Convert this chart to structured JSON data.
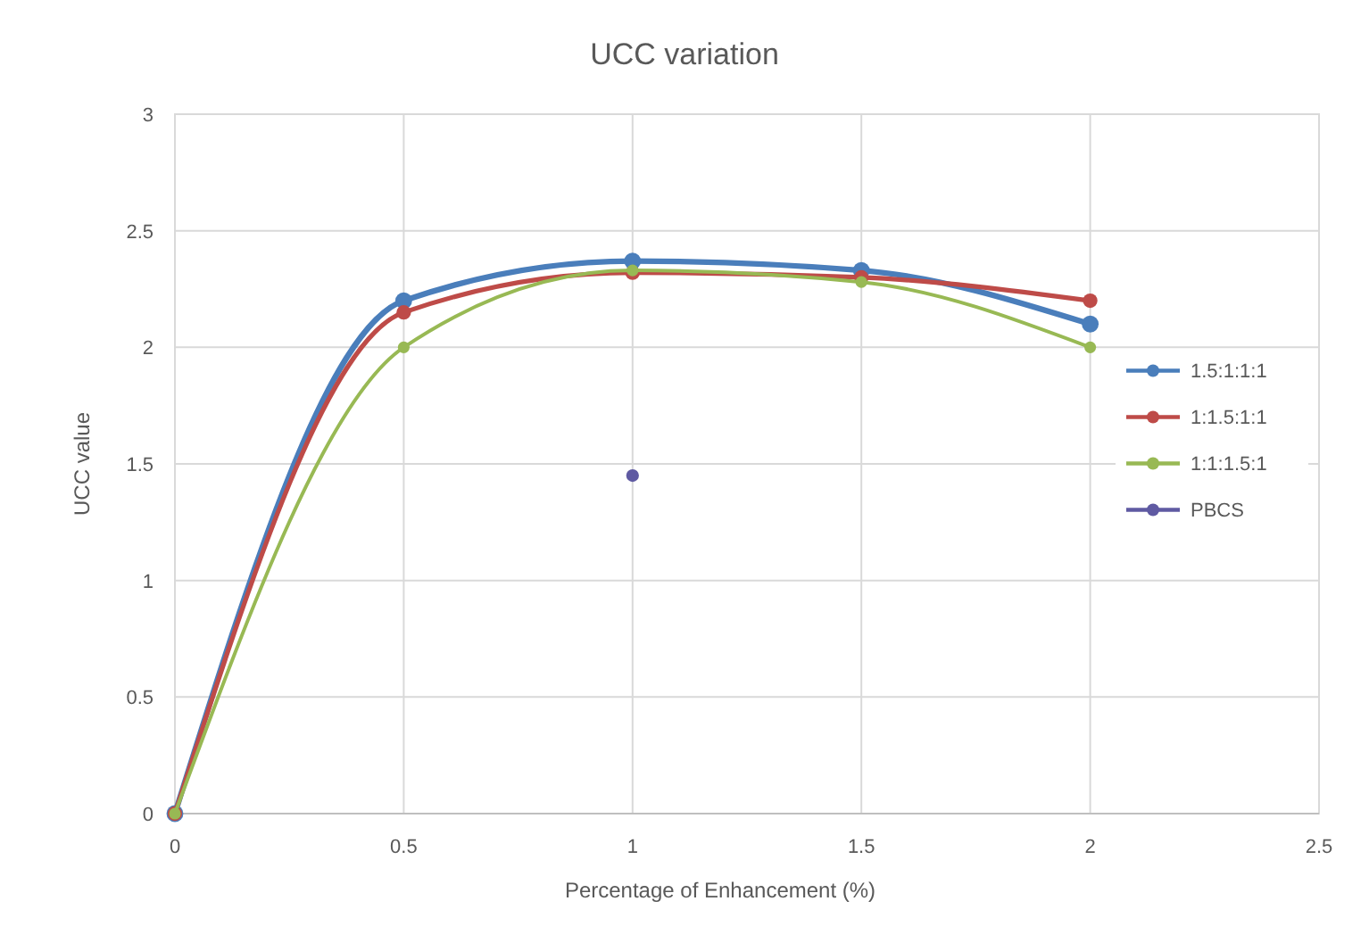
{
  "chart_data": {
    "type": "line",
    "title": "UCC variation",
    "xlabel": "Percentage of Enhancement (%)",
    "ylabel": "UCC value",
    "x": [
      0,
      0.5,
      1,
      1.5,
      2
    ],
    "series": [
      {
        "name": "1.5:1:1:1",
        "color": "#4a7ebb",
        "values": [
          0,
          2.2,
          2.37,
          2.33,
          2.1
        ]
      },
      {
        "name": "1:1.5:1:1",
        "color": "#be4b48",
        "values": [
          0,
          2.15,
          2.32,
          2.3,
          2.2
        ]
      },
      {
        "name": "1:1:1.5:1",
        "color": "#98b954",
        "values": [
          0,
          2.0,
          2.33,
          2.28,
          2.0
        ]
      },
      {
        "name": "PBCS",
        "type": "scatter",
        "color": "#5f5aa2",
        "x": [
          1
        ],
        "values": [
          1.45
        ]
      }
    ],
    "xlim": [
      0,
      2.5
    ],
    "xticks": [
      0,
      0.5,
      1,
      1.5,
      2,
      2.5
    ],
    "ylim": [
      0,
      3
    ],
    "yticks": [
      0,
      0.5,
      1,
      1.5,
      2,
      2.5,
      3
    ],
    "grid": true,
    "legend": "right",
    "marker": "circle"
  }
}
